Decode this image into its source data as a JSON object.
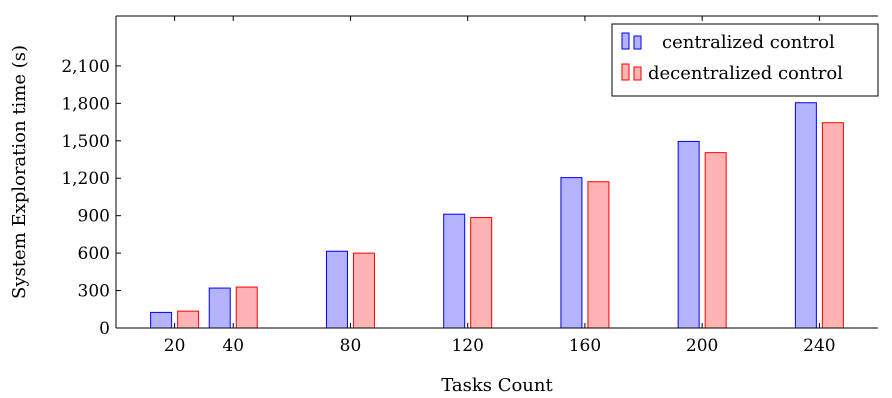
{
  "chart_data": {
    "type": "bar",
    "title": "",
    "xlabel": "Tasks Count",
    "ylabel": "System Exploration time (s)",
    "x": [
      20,
      40,
      80,
      120,
      160,
      200,
      240
    ],
    "xlim": [
      0,
      260
    ],
    "ylim": [
      0,
      2500
    ],
    "yticks": [
      0,
      300,
      600,
      900,
      1200,
      1500,
      1800,
      2100
    ],
    "ytick_labels": [
      "0",
      "300",
      "600",
      "900",
      "1,200",
      "1,500",
      "1,800",
      "2,100"
    ],
    "xtick_labels": [
      "20",
      "40",
      "80",
      "120",
      "160",
      "200",
      "240"
    ],
    "grid": false,
    "legend_position": "top-right",
    "series": [
      {
        "name": "centralized control",
        "values": [
          125,
          320,
          615,
          912,
          1205,
          1495,
          1805
        ],
        "fill": "#b3b3ff",
        "stroke": "#0000ff"
      },
      {
        "name": "decentralized control",
        "values": [
          135,
          328,
          600,
          885,
          1172,
          1405,
          1645
        ],
        "fill": "#ffb3b3",
        "stroke": "#ff0000"
      }
    ]
  }
}
